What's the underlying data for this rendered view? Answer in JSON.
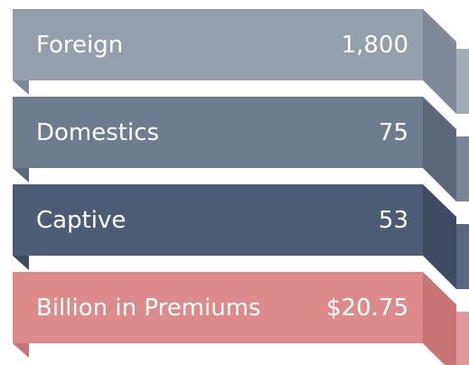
{
  "items": [
    {
      "label": "Foreign",
      "value": "1,800"
    },
    {
      "label": "Domestics",
      "value": "75"
    },
    {
      "label": "Captive",
      "value": "53"
    },
    {
      "label": "Billion in Premiums",
      "value": "$20.75"
    }
  ]
}
